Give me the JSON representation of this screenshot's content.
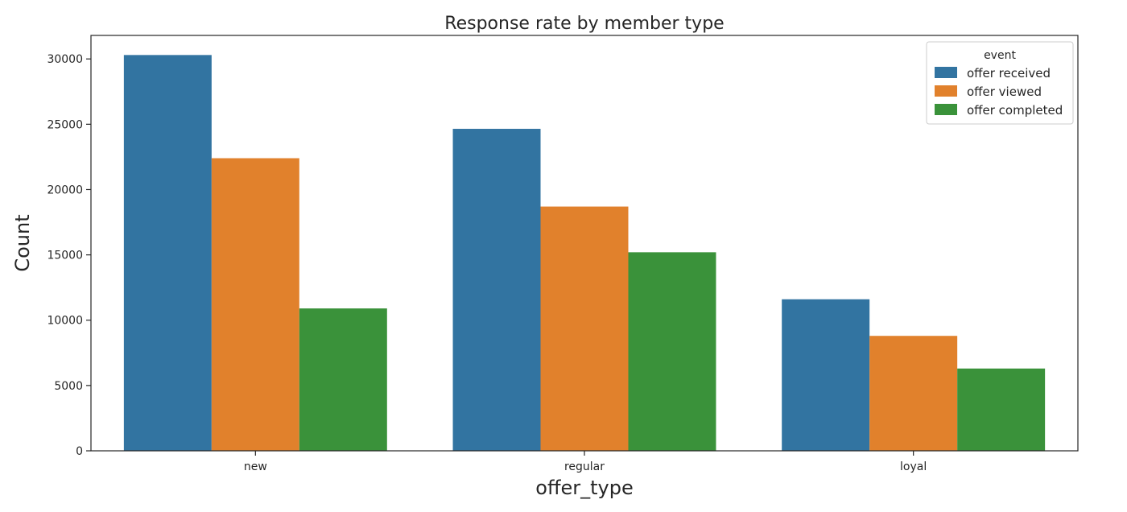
{
  "chart_data": {
    "type": "bar",
    "title": "Response rate by member type",
    "xlabel": "offer_type",
    "ylabel": "Count",
    "categories": [
      "new",
      "regular",
      "loyal"
    ],
    "series": [
      {
        "name": "offer received",
        "color": "#3274a1",
        "values": [
          30300,
          24650,
          11600
        ]
      },
      {
        "name": "offer viewed",
        "color": "#e1812c",
        "values": [
          22400,
          18700,
          8800
        ]
      },
      {
        "name": "offer completed",
        "color": "#3a923a",
        "values": [
          10900,
          15200,
          6300
        ]
      }
    ],
    "ylim": [
      0,
      31800
    ],
    "yticks": [
      0,
      5000,
      10000,
      15000,
      20000,
      25000,
      30000
    ],
    "grid": false,
    "legend": {
      "title": "event",
      "position": "top-right"
    }
  }
}
